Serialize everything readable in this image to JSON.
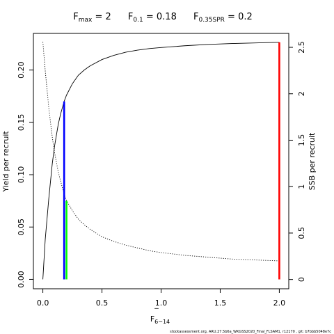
{
  "title": {
    "parts": [
      {
        "main": "F",
        "sub": "max",
        "rest": " = 2"
      },
      {
        "main": "F",
        "sub": "0.1",
        "rest": " = 0.18"
      },
      {
        "main": "F",
        "sub": "0.35SPR",
        "rest": " = 0.2"
      }
    ]
  },
  "footer": "stockassessment.org, ARU.27.5b6a_WKGSS2020_Final_FLSAM1, r12170 , git: b7bbb5048e7c",
  "chart_data": {
    "type": "line",
    "xlabel": {
      "main": "F",
      "overline": "‾",
      "sub": "6−14"
    },
    "ylabel": "Yield per recruit",
    "y2label": "SSB per recruit",
    "xlim": [
      -0.08,
      2.08
    ],
    "ylim": [
      -0.009,
      0.235
    ],
    "y2lim": [
      -0.1,
      2.65
    ],
    "x_ticks": [
      0,
      0.5,
      1,
      1.5,
      2
    ],
    "x_tick_labels": [
      "0.0",
      "0.5",
      "1.0",
      "1.5",
      "2.0"
    ],
    "y_ticks": [
      0,
      0.05,
      0.1,
      0.15,
      0.2
    ],
    "y_tick_labels": [
      "0.00",
      "0.05",
      "0.10",
      "0.15",
      "0.20"
    ],
    "y2_ticks": [
      0,
      0.5,
      1,
      1.5,
      2,
      2.5
    ],
    "y2_tick_labels": [
      "0",
      "0.5",
      "1",
      "1.5",
      "2",
      "2.5"
    ],
    "series": [
      {
        "axis": "left",
        "style": "solid",
        "color": "#000000",
        "x": [
          0,
          0.02,
          0.05,
          0.08,
          0.1,
          0.13,
          0.15,
          0.18,
          0.2,
          0.25,
          0.3,
          0.35,
          0.4,
          0.5,
          0.6,
          0.7,
          0.8,
          0.9,
          1.0,
          1.2,
          1.4,
          1.6,
          1.8,
          2.0
        ],
        "values": [
          0,
          0.038,
          0.077,
          0.111,
          0.128,
          0.148,
          0.158,
          0.17,
          0.176,
          0.187,
          0.195,
          0.2,
          0.204,
          0.21,
          0.214,
          0.217,
          0.219,
          0.2205,
          0.2215,
          0.2232,
          0.2245,
          0.2253,
          0.2259,
          0.2265
        ]
      },
      {
        "axis": "right",
        "style": "dotted",
        "color": "#000000",
        "x": [
          0,
          0.02,
          0.05,
          0.08,
          0.1,
          0.13,
          0.15,
          0.18,
          0.2,
          0.25,
          0.3,
          0.35,
          0.4,
          0.5,
          0.6,
          0.7,
          0.8,
          0.9,
          1.0,
          1.2,
          1.4,
          1.6,
          1.8,
          2.0
        ],
        "values": [
          2.56,
          2.25,
          1.85,
          1.53,
          1.36,
          1.16,
          1.06,
          0.92,
          0.85,
          0.74,
          0.65,
          0.59,
          0.54,
          0.46,
          0.41,
          0.37,
          0.34,
          0.31,
          0.29,
          0.26,
          0.24,
          0.22,
          0.21,
          0.2
        ]
      }
    ],
    "reference_lines": [
      {
        "name": "F0.1",
        "x": 0.18,
        "y": 0.17,
        "axis": "left",
        "color": "#0000ff"
      },
      {
        "name": "F0.35SPR",
        "x": 0.2,
        "y": 0.075,
        "axis": "left",
        "color": "#00ff00"
      },
      {
        "name": "Fmax",
        "x": 2.0,
        "y": 0.2265,
        "axis": "left",
        "color": "#ff0000"
      }
    ]
  }
}
